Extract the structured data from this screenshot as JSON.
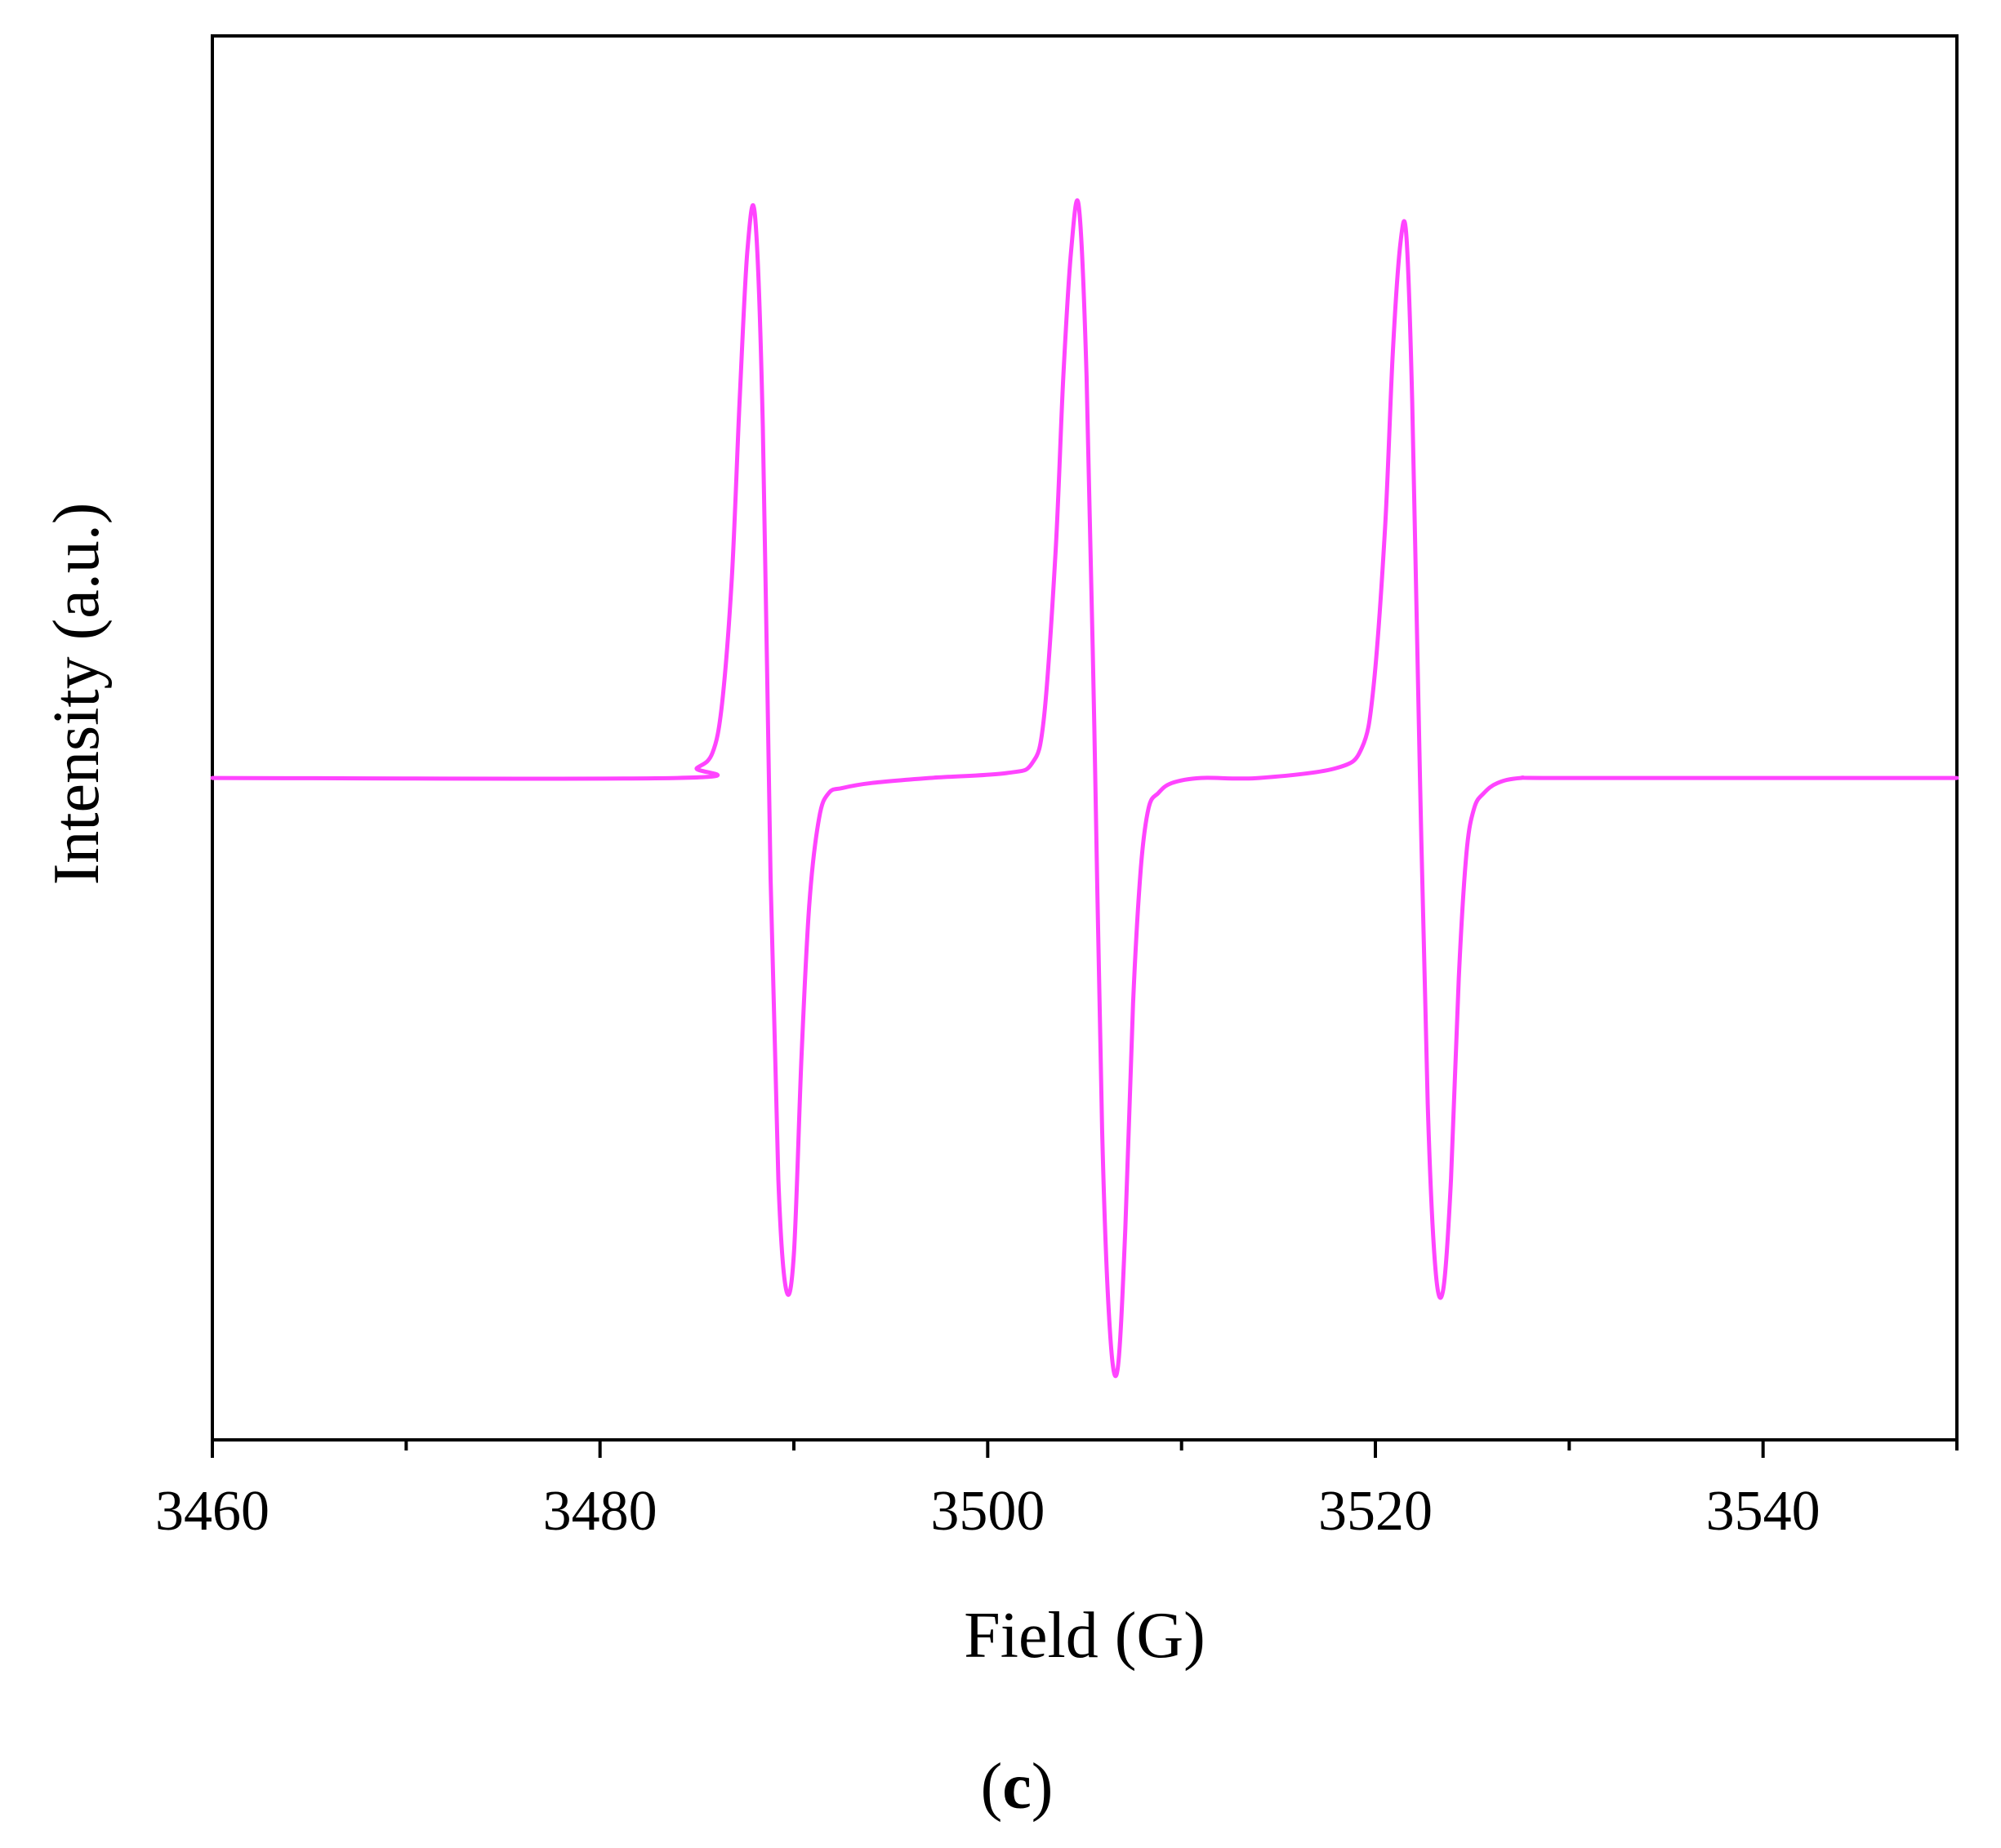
{
  "chart_data": {
    "type": "line",
    "title": "",
    "xlabel": "Field (G)",
    "ylabel": "Intensity (a.u.)",
    "xlim": [
      3460,
      3550
    ],
    "ylim": [
      -1.32,
      1.48
    ],
    "x_ticks": [
      3460,
      3480,
      3500,
      3520,
      3540
    ],
    "x_tick_labels": [
      "3460",
      "3480",
      "3500",
      "3520",
      "3540"
    ],
    "x_minor_ticks": [
      3470,
      3490,
      3510,
      3530,
      3550
    ],
    "y_ticks_shown": false,
    "grid": false,
    "legend": "none",
    "series": [
      {
        "color": "#ff44ff",
        "x": [
          3460,
          3484,
          3485,
          3485.8,
          3486.3,
          3486.8,
          3487.2,
          3487.6,
          3488.0,
          3488.4,
          3488.8,
          3489.2,
          3489.6,
          3490.0,
          3490.4,
          3490.8,
          3491.3,
          3491.8,
          3492.5,
          3494,
          3497,
          3501,
          3502.3,
          3502.9,
          3503.5,
          3503.9,
          3504.3,
          3504.7,
          3505.1,
          3505.5,
          3505.9,
          3506.3,
          3506.7,
          3507.1,
          3507.5,
          3507.9,
          3508.3,
          3508.8,
          3509.5,
          3511,
          3514,
          3518,
          3519.3,
          3519.9,
          3520.5,
          3520.9,
          3521.3,
          3521.6,
          3521.9,
          3522.3,
          3522.7,
          3523.1,
          3523.5,
          3523.9,
          3524.3,
          3524.7,
          3525.1,
          3525.6,
          3526.3,
          3527.5,
          3530,
          3550
        ],
        "y": [
          0,
          0,
          0.02,
          0.05,
          0.15,
          0.4,
          0.75,
          1.05,
          1.12,
          0.7,
          -0.2,
          -0.8,
          -1.02,
          -0.95,
          -0.55,
          -0.25,
          -0.08,
          -0.03,
          -0.02,
          -0.01,
          0,
          0.01,
          0.03,
          0.12,
          0.45,
          0.8,
          1.05,
          1.14,
          0.8,
          0.1,
          -0.7,
          -1.1,
          -1.18,
          -0.9,
          -0.45,
          -0.18,
          -0.06,
          -0.03,
          -0.01,
          0,
          0,
          0.02,
          0.06,
          0.18,
          0.5,
          0.85,
          1.07,
          1.08,
          0.75,
          0.0,
          -0.65,
          -0.98,
          -1.02,
          -0.8,
          -0.4,
          -0.15,
          -0.06,
          -0.03,
          -0.01,
          0,
          0,
          0
        ]
      }
    ]
  },
  "panel_label": {
    "open": "(",
    "letter": "c",
    "close": ")"
  }
}
